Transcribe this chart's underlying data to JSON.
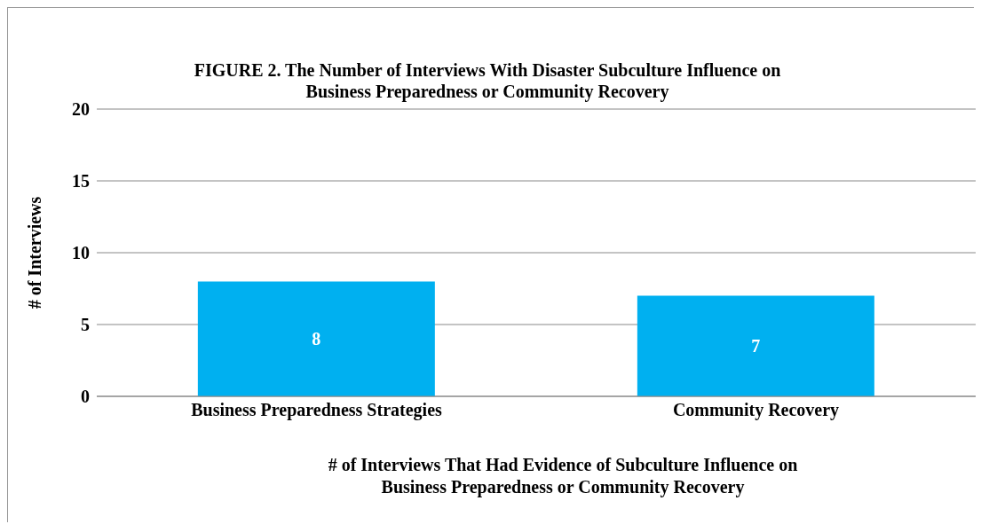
{
  "chart_data": {
    "type": "bar",
    "title": "FIGURE 2. The Number of Interviews With Disaster Subculture Influence on\nBusiness Preparedness or Community Recovery",
    "categories": [
      "Business Preparedness Strategies",
      "Community Recovery"
    ],
    "values": [
      8,
      7
    ],
    "color": "#00b0f0",
    "ylim": [
      0,
      20
    ],
    "yticks": [
      0,
      5,
      10,
      15,
      20
    ],
    "grid": "y",
    "data_labels": true,
    "xlabel": "# of Interviews That Had Evidence of Subculture Influence on\nBusiness Preparedness or Community Recovery",
    "ylabel": "# of Interviews"
  }
}
